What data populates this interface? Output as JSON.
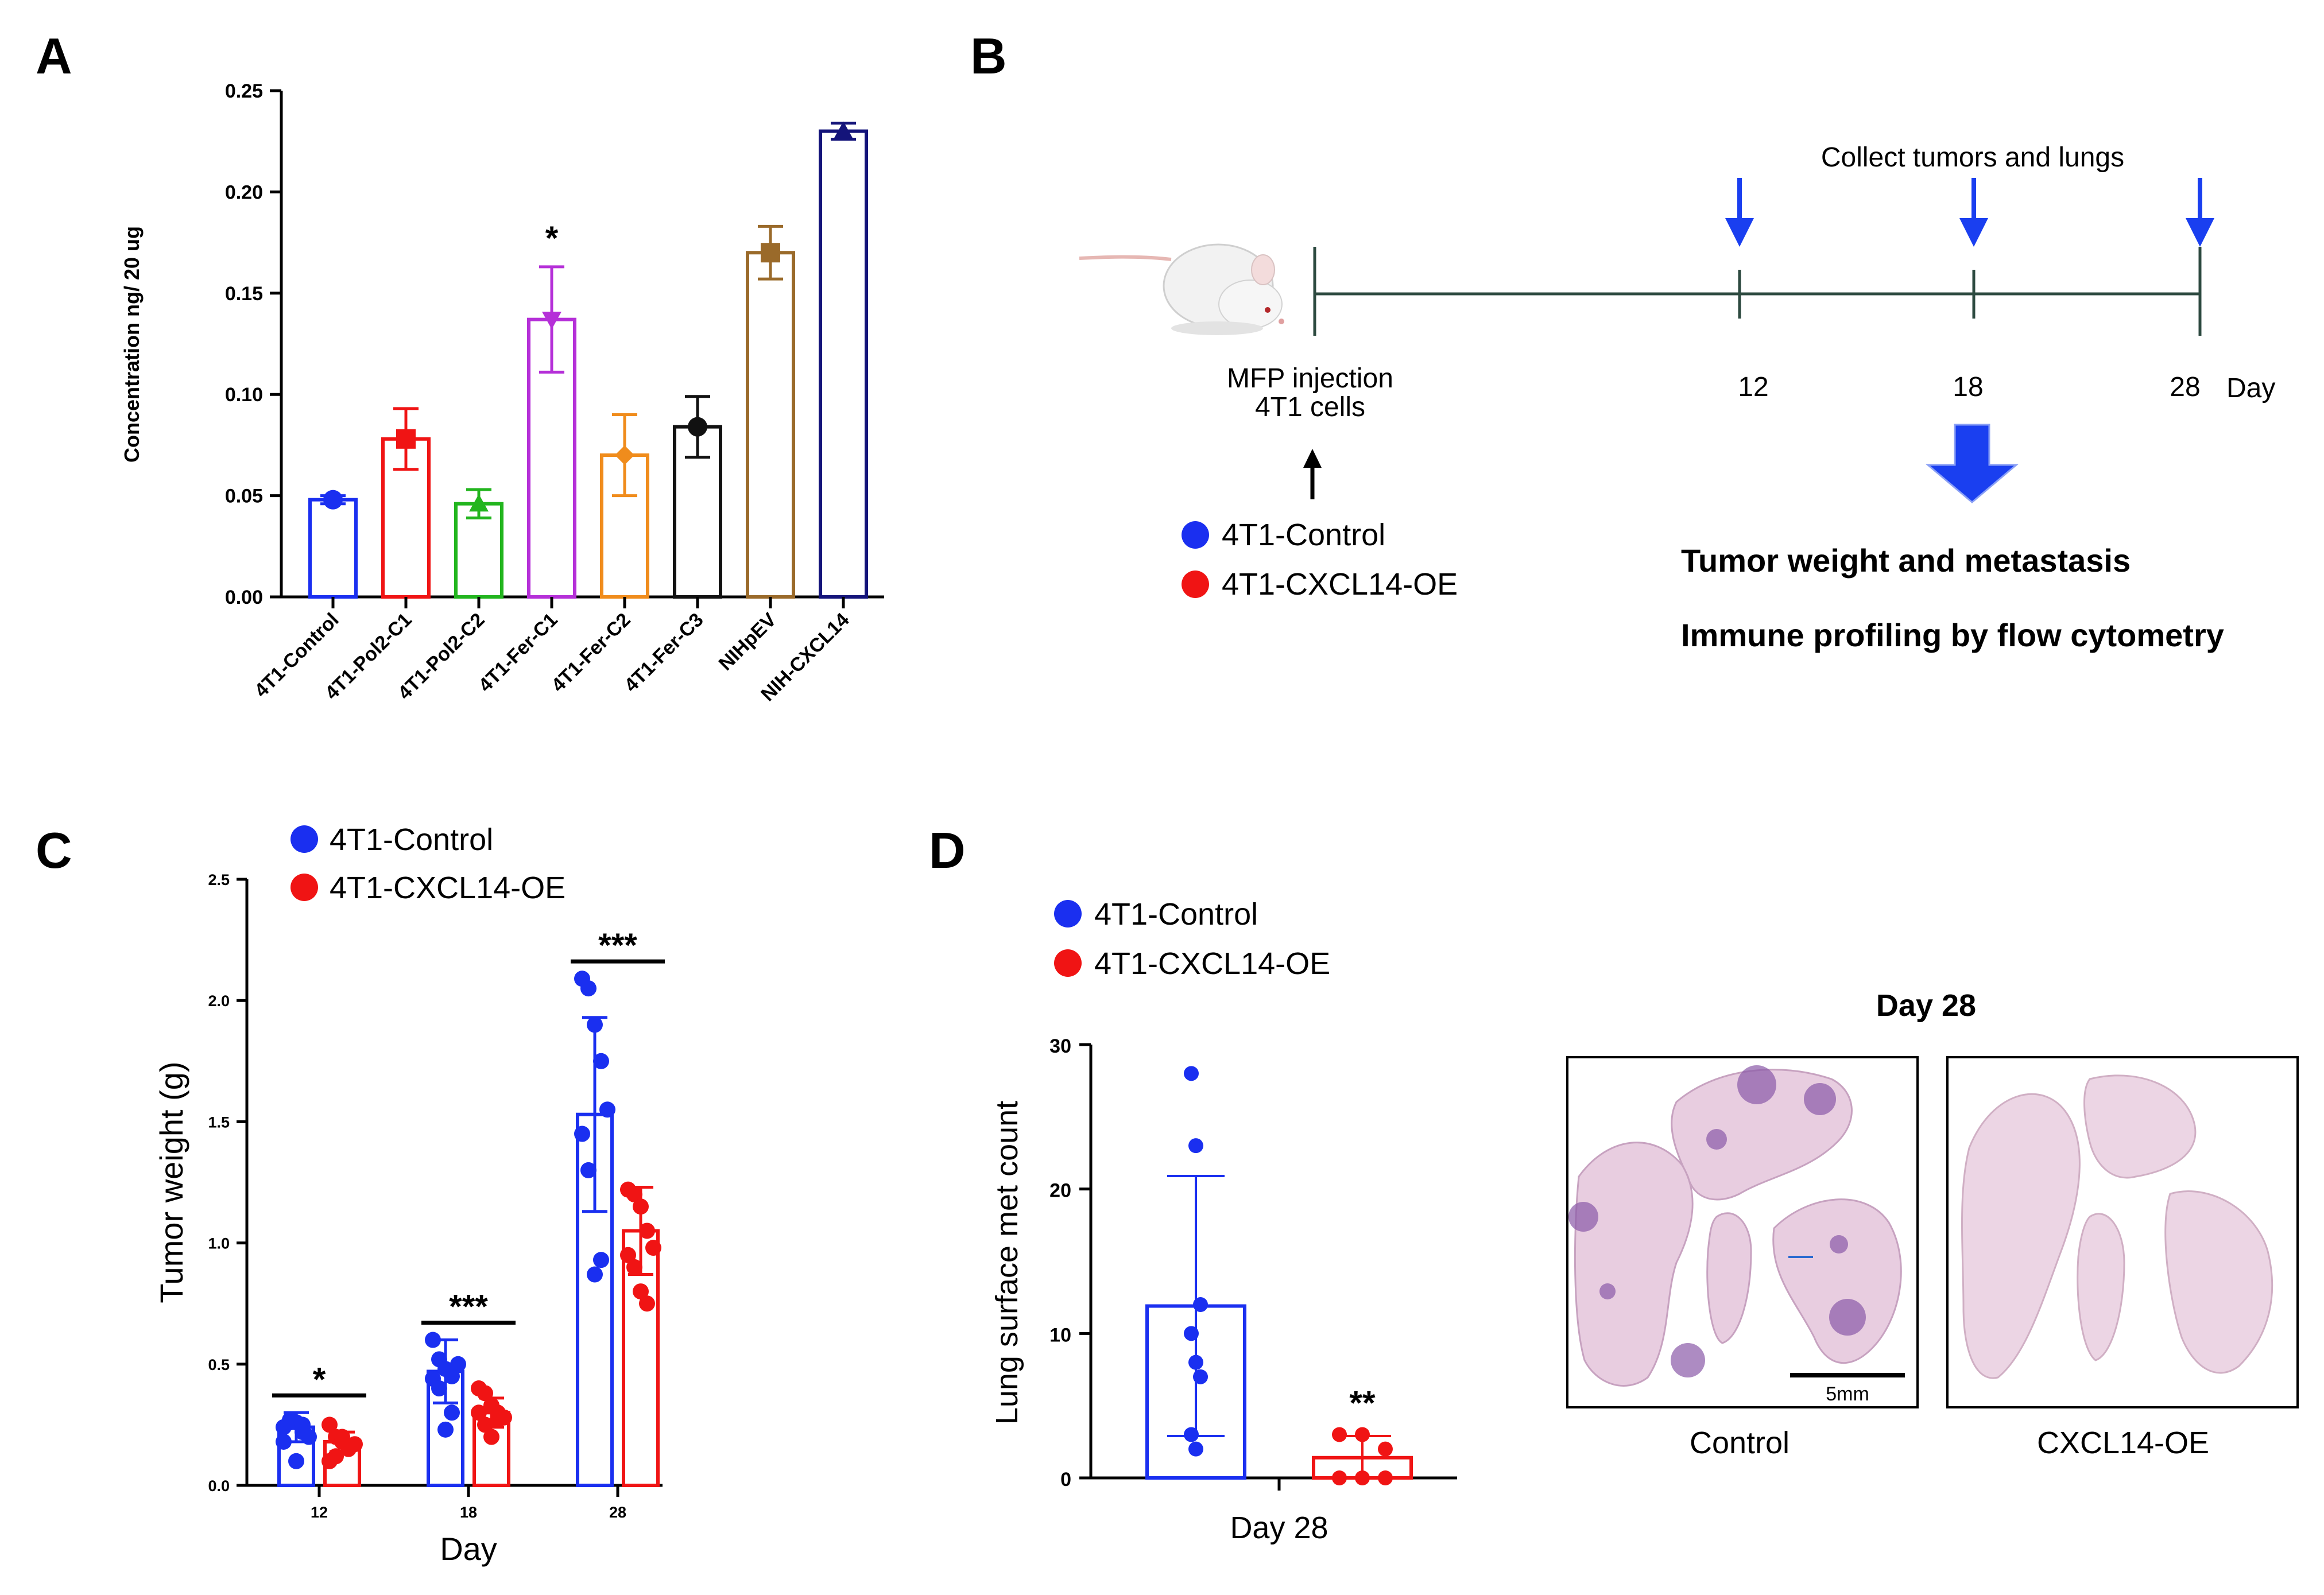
{
  "panels": {
    "a": "A",
    "b": "B",
    "c": "C",
    "d": "D"
  },
  "colors": {
    "control": "#1a2ff0",
    "oe": "#f01414",
    "timeline": "#2d4a40",
    "arrow": "#1a3ff0"
  },
  "chart_data": [
    {
      "panel": "A",
      "type": "bar",
      "ylabel": "Concentration ng/ 20 ug",
      "ylim": [
        0,
        0.25
      ],
      "yticks": [
        "0.00",
        "0.05",
        "0.10",
        "0.15",
        "0.20",
        "0.25"
      ],
      "categories": [
        "4T1-Control",
        "4T1-Pol2-C1",
        "4T1-Pol2-C2",
        "4T1-Fer-C1",
        "4T1-Fer-C2",
        "4T1-Fer-C3",
        "NIHpEV",
        "NIH-CXCL14"
      ],
      "values": [
        0.048,
        0.078,
        0.046,
        0.137,
        0.07,
        0.084,
        0.17,
        0.23
      ],
      "error": [
        0.002,
        0.015,
        0.007,
        0.026,
        0.02,
        0.015,
        0.013,
        0.004
      ],
      "colors": [
        "#1a2ff0",
        "#f01414",
        "#22b51e",
        "#b530d8",
        "#f08c1c",
        "#111111",
        "#9a6a2a",
        "#14147a"
      ],
      "markers": [
        "circle",
        "square",
        "triangle",
        "triangle-down",
        "diamond",
        "circle",
        "square",
        "triangle"
      ],
      "annotations": [
        {
          "category": "4T1-Fer-C1",
          "text": "*"
        }
      ]
    },
    {
      "panel": "C",
      "type": "bar",
      "xlabel": "Day",
      "ylabel": "Tumor weight (g)",
      "ylim": [
        0,
        2.5
      ],
      "yticks": [
        "0.0",
        "0.5",
        "1.0",
        "1.5",
        "2.0",
        "2.5"
      ],
      "categories": [
        "12",
        "18",
        "28"
      ],
      "series": [
        {
          "name": "4T1-Control",
          "values": [
            0.24,
            0.47,
            1.53
          ],
          "error": [
            0.06,
            0.13,
            0.4
          ],
          "points": [
            [
              0.24,
              0.27,
              0.26,
              0.22,
              0.2,
              0.18,
              0.26,
              0.1,
              0.25
            ],
            [
              0.6,
              0.52,
              0.48,
              0.45,
              0.5,
              0.44,
              0.4,
              0.23,
              0.3
            ],
            [
              2.09,
              2.05,
              1.9,
              1.75,
              1.55,
              1.45,
              1.3,
              0.87,
              0.93
            ]
          ]
        },
        {
          "name": "4T1-CXCL14-OE",
          "values": [
            0.18,
            0.3,
            1.05
          ],
          "error": [
            0.04,
            0.06,
            0.18
          ],
          "points": [
            [
              0.25,
              0.2,
              0.18,
              0.15,
              0.17,
              0.1,
              0.12,
              0.2,
              0.16
            ],
            [
              0.4,
              0.38,
              0.33,
              0.3,
              0.28,
              0.3,
              0.25,
              0.2,
              0.27
            ],
            [
              1.22,
              1.2,
              1.15,
              1.05,
              0.98,
              0.95,
              0.9,
              0.8,
              0.75
            ]
          ]
        }
      ],
      "significance": [
        "*",
        "***",
        "***"
      ]
    },
    {
      "panel": "D",
      "type": "bar",
      "xlabel": "Day 28",
      "ylabel": "Lung surface met count",
      "ylim": [
        0,
        30
      ],
      "yticks": [
        "0",
        "10",
        "20",
        "30"
      ],
      "series": [
        {
          "name": "4T1-Control",
          "value": 11.9,
          "error": 9,
          "points": [
            28,
            23,
            12,
            10,
            8,
            7,
            3,
            2
          ]
        },
        {
          "name": "4T1-CXCL14-OE",
          "value": 1.4,
          "error": 1.5,
          "points": [
            3,
            3,
            2,
            0,
            0,
            0
          ]
        }
      ],
      "significance": "**"
    }
  ],
  "timeline": {
    "collect_label": "Collect tumors and lungs",
    "injection_line1": "MFP injection",
    "injection_line2": "4T1 cells",
    "days": [
      "12",
      "18",
      "28"
    ],
    "day_label": "Day",
    "legend": [
      "4T1-Control",
      "4T1-CXCL14-OE"
    ],
    "outcome1": "Tumor weight and metastasis",
    "outcome2": "Immune profiling by flow cytometry"
  },
  "legends": {
    "c": [
      "4T1-Control",
      "4T1-CXCL14-OE"
    ],
    "d": [
      "4T1-Control",
      "4T1-CXCL14-OE"
    ]
  },
  "histology": {
    "title": "Day 28",
    "labels": [
      "Control",
      "CXCL14-OE"
    ],
    "scalebar": "5mm"
  }
}
